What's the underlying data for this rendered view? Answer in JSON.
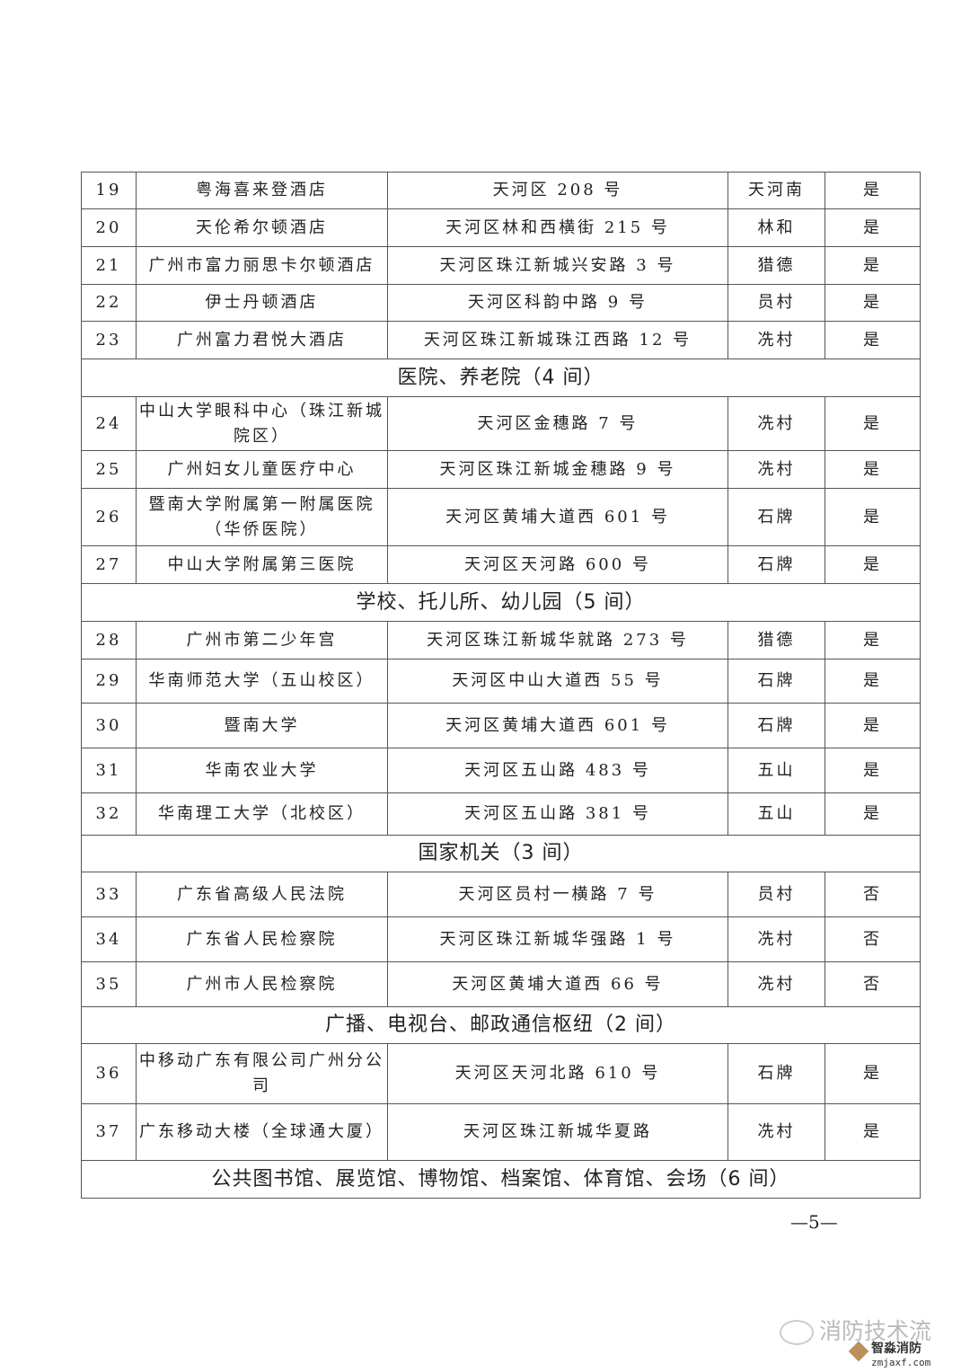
{
  "rows": [
    {
      "no": "19",
      "name": "粤海喜来登酒店",
      "address": "天河区 208 号",
      "area": "天河南",
      "flag": "是"
    },
    {
      "no": "20",
      "name": "天伦希尔顿酒店",
      "address": "天河区林和西横街 215 号",
      "area": "林和",
      "flag": "是"
    },
    {
      "no": "21",
      "name": "广州市富力丽思卡尔顿酒店",
      "address": "天河区珠江新城兴安路 3 号",
      "area": "猎德",
      "flag": "是"
    },
    {
      "no": "22",
      "name": "伊士丹顿酒店",
      "address": "天河区科韵中路 9 号",
      "area": "员村",
      "flag": "是"
    },
    {
      "no": "23",
      "name": "广州富力君悦大酒店",
      "address": "天河区珠江新城珠江西路 12 号",
      "area": "冼村",
      "flag": "是"
    },
    {
      "section": "医院、养老院（4 间）"
    },
    {
      "no": "24",
      "name": "中山大学眼科中心（珠江新城院区）",
      "address": "天河区金穗路 7 号",
      "area": "冼村",
      "flag": "是"
    },
    {
      "no": "25",
      "name": "广州妇女儿童医疗中心",
      "address": "天河区珠江新城金穗路 9 号",
      "area": "冼村",
      "flag": "是"
    },
    {
      "no": "26",
      "name": "暨南大学附属第一附属医院（华侨医院）",
      "address": "天河区黄埔大道西 601 号",
      "area": "石牌",
      "flag": "是"
    },
    {
      "no": "27",
      "name": "中山大学附属第三医院",
      "address": "天河区天河路 600 号",
      "area": "石牌",
      "flag": "是"
    },
    {
      "section": "学校、托儿所、幼儿园（5 间）"
    },
    {
      "no": "28",
      "name": "广州市第二少年宫",
      "address": "天河区珠江新城华就路 273 号",
      "area": "猎德",
      "flag": "是"
    },
    {
      "no": "29",
      "name": "华南师范大学（五山校区）",
      "address": "天河区中山大道西 55 号",
      "area": "石牌",
      "flag": "是"
    },
    {
      "no": "30",
      "name": "暨南大学",
      "address": "天河区黄埔大道西 601 号",
      "area": "石牌",
      "flag": "是"
    },
    {
      "no": "31",
      "name": "华南农业大学",
      "address": "天河区五山路 483 号",
      "area": "五山",
      "flag": "是"
    },
    {
      "no": "32",
      "name": "华南理工大学（北校区）",
      "address": "天河区五山路 381 号",
      "area": "五山",
      "flag": "是"
    },
    {
      "section": "国家机关（3 间）"
    },
    {
      "no": "33",
      "name": "广东省高级人民法院",
      "address": "天河区员村一横路 7 号",
      "area": "员村",
      "flag": "否"
    },
    {
      "no": "34",
      "name": "广东省人民检察院",
      "address": "天河区珠江新城华强路 1 号",
      "area": "冼村",
      "flag": "否"
    },
    {
      "no": "35",
      "name": "广州市人民检察院",
      "address": "天河区黄埔大道西 66 号",
      "area": "冼村",
      "flag": "否"
    },
    {
      "section": "广播、电视台、邮政通信枢纽（2 间）"
    },
    {
      "no": "36",
      "name": "中移动广东有限公司广州分公司",
      "address": "天河区天河北路 610 号",
      "area": "石牌",
      "flag": "是"
    },
    {
      "no": "37",
      "name": "广东移动大楼（全球通大厦）",
      "address": "天河区珠江新城华夏路",
      "area": "冼村",
      "flag": "是"
    },
    {
      "section": "公共图书馆、展览馆、博物馆、档案馆、体育馆、会场（6 间）"
    }
  ],
  "page_number": "—5—",
  "watermark": {
    "text": "消防技术流",
    "logo_name": "智淼消防",
    "logo_url": "zmjaxf.com",
    "icon": "wechat-icon"
  }
}
